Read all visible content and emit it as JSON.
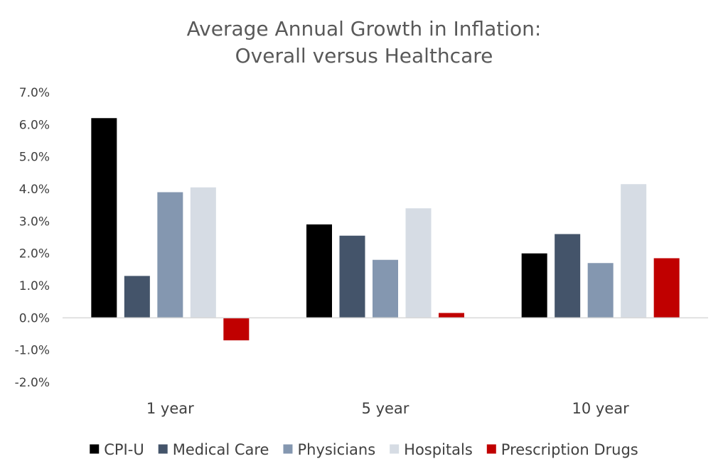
{
  "chart_data": {
    "type": "bar",
    "title": "Average Annual Growth in Inflation:",
    "subtitle": "Overall versus Healthcare",
    "xlabel": "",
    "ylabel": "",
    "categories": [
      "1 year",
      "5 year",
      "10 year"
    ],
    "ylim": [
      -2.0,
      7.0
    ],
    "yticks": [
      "7.0%",
      "6.0%",
      "5.0%",
      "4.0%",
      "3.0%",
      "2.0%",
      "1.0%",
      "0.0%",
      "-1.0%",
      "-2.0%"
    ],
    "grid": false,
    "legend_position": "bottom",
    "series": [
      {
        "name": "CPI-U",
        "color": "#000000",
        "values": [
          6.2,
          2.9,
          2.0
        ]
      },
      {
        "name": "Medical Care",
        "color": "#44546a",
        "values": [
          1.3,
          2.55,
          2.6
        ]
      },
      {
        "name": "Physicians",
        "color": "#8497b0",
        "values": [
          3.9,
          1.8,
          1.7
        ]
      },
      {
        "name": "Hospitals",
        "color": "#d6dce4",
        "values": [
          4.05,
          3.4,
          4.15
        ]
      },
      {
        "name": "Prescription Drugs",
        "color": "#c00000",
        "values": [
          -0.7,
          0.15,
          1.85
        ]
      }
    ]
  }
}
